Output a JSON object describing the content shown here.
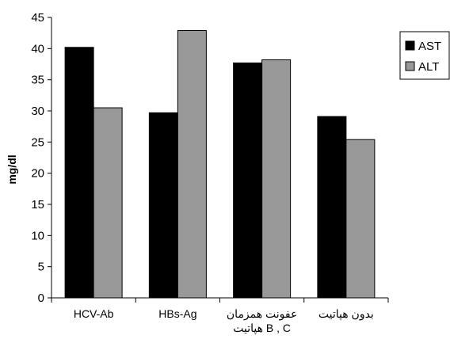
{
  "chart_data": {
    "type": "bar",
    "title": "",
    "xlabel": "",
    "ylabel": "mg/dl",
    "ylim": [
      0,
      45
    ],
    "yticks": [
      0,
      5,
      10,
      15,
      20,
      25,
      30,
      35,
      40,
      45
    ],
    "grid": false,
    "legend_position": "right",
    "categories": [
      [
        "HCV-Ab"
      ],
      [
        "HBs-Ag"
      ],
      [
        "عفونت همزمان",
        "هپاتیت B , C"
      ],
      [
        "بدون هپاتیت"
      ]
    ],
    "series": [
      {
        "name": "AST",
        "color": "#000000",
        "values": [
          40.2,
          29.7,
          37.7,
          29.1
        ]
      },
      {
        "name": "ALT",
        "color": "#999999",
        "values": [
          30.5,
          42.9,
          38.2,
          25.4
        ]
      }
    ]
  }
}
